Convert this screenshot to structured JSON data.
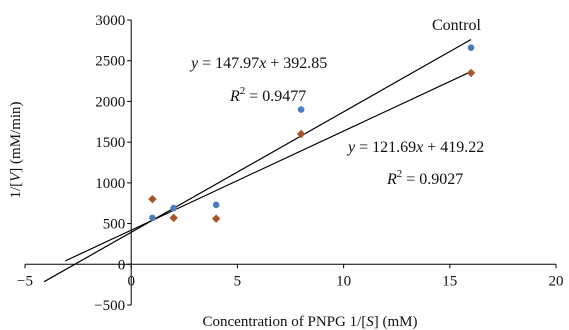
{
  "chart_data": {
    "type": "scatter",
    "title": "",
    "xlabel": "Concentration of PNPG 1/[S] (mM)",
    "ylabel": "1/[V] (mM/min)",
    "xlim": [
      -5,
      20
    ],
    "ylim": [
      -500,
      3000
    ],
    "x_ticks": [
      "−5",
      "0",
      "5",
      "10",
      "15",
      "20"
    ],
    "y_ticks": [
      "−500",
      "0",
      "500",
      "1000",
      "1500",
      "2000",
      "2500",
      "3000"
    ],
    "grid": false,
    "series": [
      {
        "name": "Control",
        "marker": "circle",
        "color": "#4a7ebb",
        "x": [
          1,
          2,
          4,
          8,
          16
        ],
        "y": [
          570,
          690,
          730,
          1900,
          2660
        ],
        "fit": {
          "slope": 147.97,
          "intercept": 392.85,
          "x_from": -4.1,
          "x_to": 16
        },
        "equation": "y = 147.97x + 392.85",
        "r2": "R2 = 0.9477"
      },
      {
        "name": "",
        "marker": "diamond",
        "color": "#a65628",
        "x": [
          1,
          2,
          4,
          8,
          16
        ],
        "y": [
          800,
          570,
          560,
          1600,
          2350
        ],
        "fit": {
          "slope": 121.69,
          "intercept": 419.22,
          "x_from": -3.1,
          "x_to": 16
        },
        "equation": "y = 121.69x + 419.22",
        "r2": "R2 = 0.9027"
      }
    ],
    "annotations": {
      "control_label": "Control",
      "eq1": {
        "y": "y",
        "eq": " = 147.97",
        "x": "x",
        "rest": " + 392.85"
      },
      "r2_1": {
        "r": "R",
        "sup": "2",
        "rest": " = 0.9477"
      },
      "eq2": {
        "y": "y",
        "eq": " = 121.69",
        "x": "x",
        "rest": " + 419.22"
      },
      "r2_2": {
        "r": "R",
        "sup": "2",
        "rest": " = 0.9027"
      }
    },
    "xlabel_parts": {
      "pre": "Concentration of PNPG 1/[",
      "var": "S",
      "post": "] (mM)"
    },
    "ylabel_parts": {
      "pre": "1/[",
      "var": "V",
      "post": "] (mM/min)"
    }
  }
}
